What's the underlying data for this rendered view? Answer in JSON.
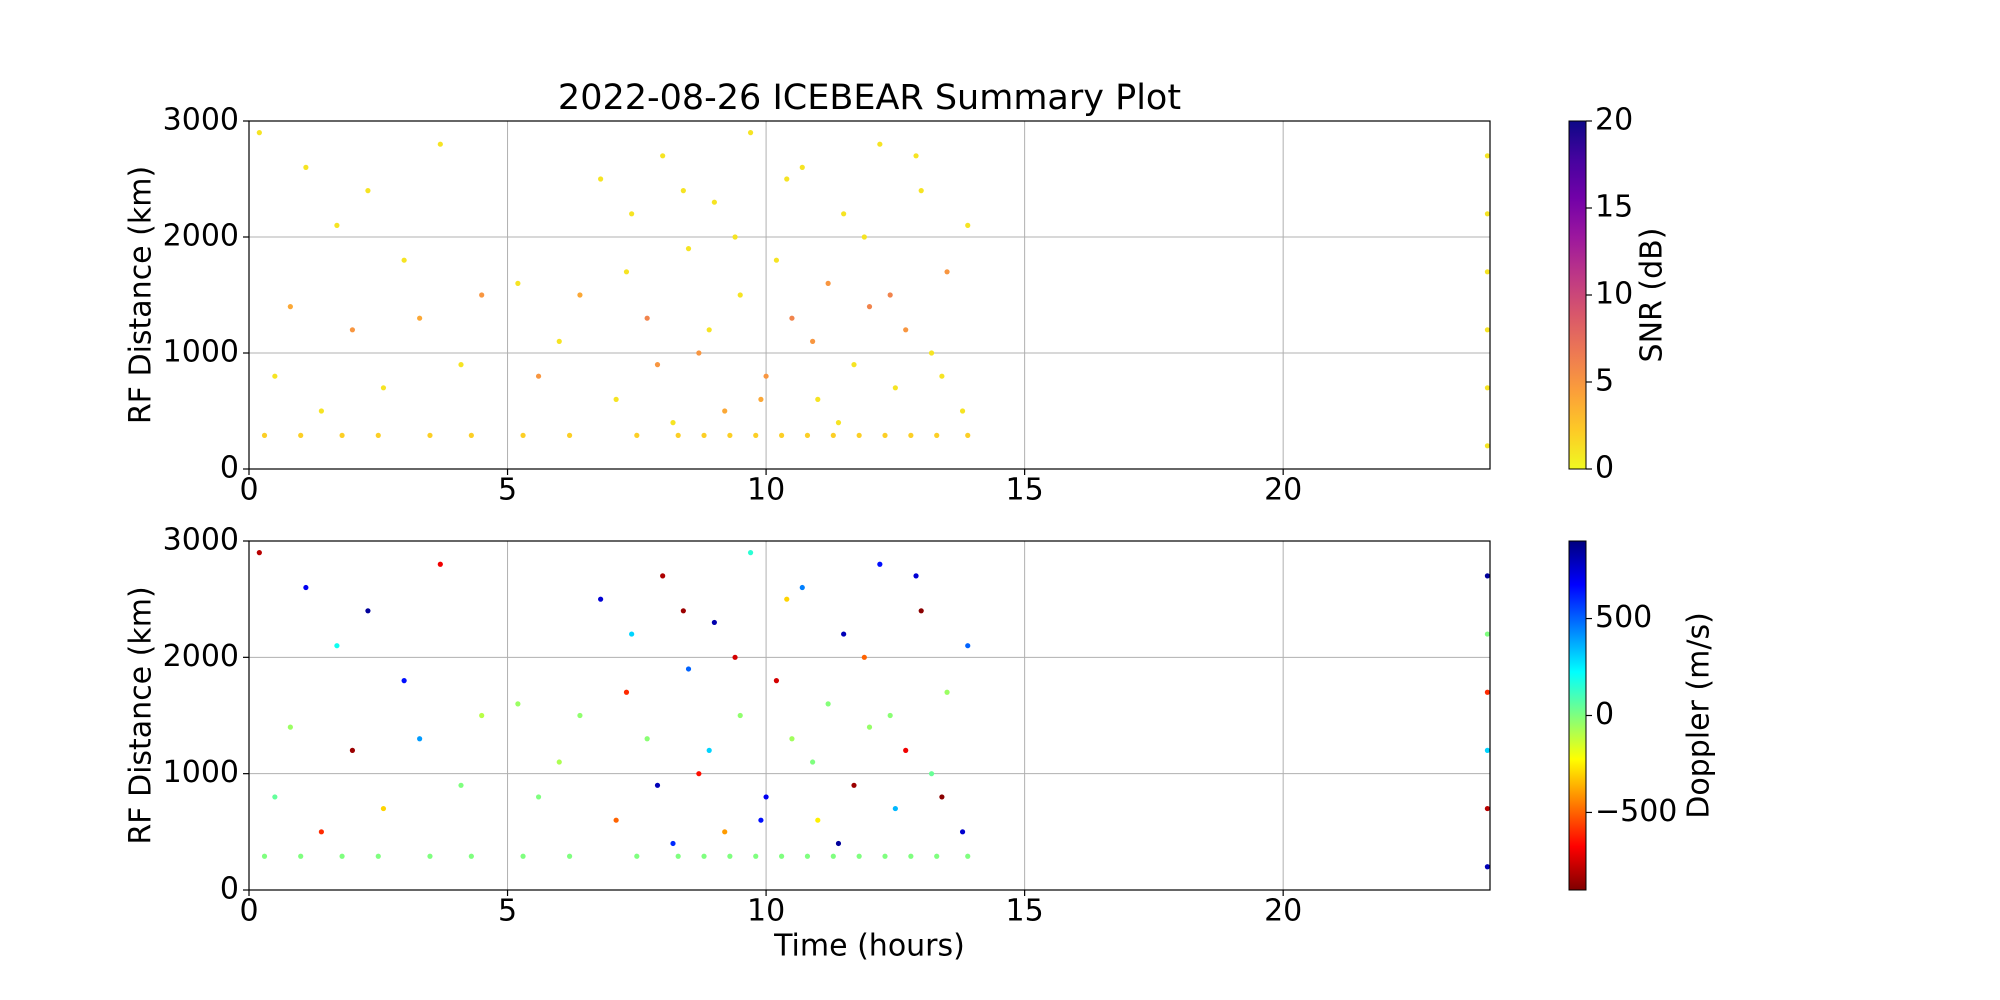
{
  "chart_data": [
    {
      "type": "scatter",
      "title": "2022-08-26 ICEBEAR Summary Plot",
      "ylabel": "RF Distance (km)",
      "colorbar_label": "SNR (dB)",
      "colormap": "plasma_r",
      "clim": [
        0,
        20
      ],
      "cticks": [
        0,
        5,
        10,
        15,
        20
      ],
      "xlim": [
        0,
        24
      ],
      "ylim": [
        0,
        3000
      ],
      "xticks": [
        0,
        5,
        10,
        15,
        20
      ],
      "yticks": [
        0,
        1000,
        2000,
        3000
      ],
      "grid": true,
      "x": [
        0.2,
        0.5,
        0.8,
        1.1,
        1.4,
        1.7,
        2,
        2.3,
        2.6,
        3,
        3.3,
        3.7,
        4.1,
        4.5,
        5.2,
        5.6,
        6,
        6.4,
        6.8,
        7.1,
        7.4,
        7.7,
        8,
        8.2,
        8.5,
        8.7,
        9,
        9.2,
        9.5,
        9.7,
        10,
        10.2,
        10.5,
        10.7,
        11,
        11.2,
        11.5,
        11.7,
        12,
        12.2,
        12.5,
        12.7,
        13,
        13.2,
        13.5,
        13.8,
        0.3,
        1,
        1.8,
        2.5,
        3.5,
        4.3,
        5.3,
        6.2,
        7.5,
        8.3,
        8.8,
        9.3,
        9.8,
        10.3,
        10.8,
        11.3,
        11.8,
        12.3,
        12.8,
        13.3,
        13.9,
        7.3,
        7.9,
        8.4,
        8.9,
        9.4,
        9.9,
        10.4,
        10.9,
        11.4,
        11.9,
        12.4,
        12.9,
        13.4,
        13.9,
        23.95,
        23.95,
        23.95,
        23.95,
        23.95,
        23.95
      ],
      "y": [
        2900,
        800,
        1400,
        2600,
        500,
        2100,
        1200,
        2400,
        700,
        1800,
        1300,
        2800,
        900,
        1500,
        1600,
        800,
        1100,
        1500,
        2500,
        600,
        2200,
        1300,
        2700,
        400,
        1900,
        1000,
        2300,
        500,
        1500,
        2900,
        800,
        1800,
        1300,
        2600,
        600,
        1600,
        2200,
        900,
        1400,
        2800,
        700,
        1200,
        2400,
        1000,
        1700,
        500,
        290,
        290,
        290,
        290,
        290,
        290,
        290,
        290,
        290,
        290,
        290,
        290,
        290,
        290,
        290,
        290,
        290,
        290,
        290,
        290,
        290,
        1700,
        900,
        2400,
        1200,
        2000,
        600,
        2500,
        1100,
        400,
        2000,
        1500,
        2700,
        800,
        2100,
        200,
        700,
        1200,
        1700,
        2200,
        2700
      ],
      "c": [
        1,
        1,
        4,
        1,
        1,
        1,
        5,
        1,
        1,
        1,
        4,
        1,
        1,
        5,
        1,
        5,
        1,
        4,
        1,
        1,
        1,
        6,
        1,
        1,
        1,
        5,
        1,
        4,
        1,
        1,
        5,
        1,
        6,
        1,
        1,
        5,
        1,
        1,
        6,
        1,
        1,
        5,
        1,
        1,
        5,
        1,
        2,
        2,
        2,
        2,
        2,
        2,
        2,
        2,
        2,
        2,
        2,
        2,
        2,
        2,
        2,
        2,
        2,
        2,
        2,
        2,
        2,
        1,
        5,
        1,
        1,
        1,
        4,
        1,
        5,
        1,
        1,
        6,
        1,
        1,
        1,
        1,
        1,
        1,
        1,
        1,
        1
      ]
    },
    {
      "type": "scatter",
      "xlabel": "Time (hours)",
      "ylabel": "RF Distance (km)",
      "colorbar_label": "Doppler (m/s)",
      "colormap": "jet_r",
      "clim": [
        -900,
        900
      ],
      "cticks": [
        {
          "value": -500,
          "label": "−500"
        },
        0,
        500
      ],
      "xlim": [
        0,
        24
      ],
      "ylim": [
        0,
        3000
      ],
      "xticks": [
        0,
        5,
        10,
        15,
        20
      ],
      "yticks": [
        0,
        1000,
        2000,
        3000
      ],
      "grid": true,
      "x": [
        0.2,
        0.5,
        0.8,
        1.1,
        1.4,
        1.7,
        2,
        2.3,
        2.6,
        3,
        3.3,
        3.7,
        4.1,
        4.5,
        5.2,
        5.6,
        6,
        6.4,
        6.8,
        7.1,
        7.4,
        7.7,
        8,
        8.2,
        8.5,
        8.7,
        9,
        9.2,
        9.5,
        9.7,
        10,
        10.2,
        10.5,
        10.7,
        11,
        11.2,
        11.5,
        11.7,
        12,
        12.2,
        12.5,
        12.7,
        13,
        13.2,
        13.5,
        13.8,
        0.3,
        1,
        1.8,
        2.5,
        3.5,
        4.3,
        5.3,
        6.2,
        7.5,
        8.3,
        8.8,
        9.3,
        9.8,
        10.3,
        10.8,
        11.3,
        11.8,
        12.3,
        12.8,
        13.3,
        13.9,
        7.3,
        7.9,
        8.4,
        8.9,
        9.4,
        9.9,
        10.4,
        10.9,
        11.4,
        11.9,
        12.4,
        12.9,
        13.4,
        13.9,
        23.95,
        23.95,
        23.95,
        23.95,
        23.95,
        23.95
      ],
      "y": [
        2900,
        800,
        1400,
        2600,
        500,
        2100,
        1200,
        2400,
        700,
        1800,
        1300,
        2800,
        900,
        1500,
        1600,
        800,
        1100,
        1500,
        2500,
        600,
        2200,
        1300,
        2700,
        400,
        1900,
        1000,
        2300,
        500,
        1500,
        2900,
        800,
        1800,
        1300,
        2600,
        600,
        1600,
        2200,
        900,
        1400,
        2800,
        700,
        1200,
        2400,
        1000,
        1700,
        500,
        290,
        290,
        290,
        290,
        290,
        290,
        290,
        290,
        290,
        290,
        290,
        290,
        290,
        290,
        290,
        290,
        290,
        290,
        290,
        290,
        290,
        1700,
        900,
        2400,
        1200,
        2000,
        600,
        2500,
        1100,
        400,
        2000,
        1500,
        2700,
        800,
        2100,
        200,
        700,
        1200,
        1700,
        2200,
        2700
      ],
      "c": [
        -800,
        50,
        -50,
        700,
        -600,
        200,
        -850,
        850,
        -300,
        650,
        400,
        -700,
        0,
        -100,
        -50,
        0,
        -80,
        -30,
        750,
        -500,
        300,
        -20,
        -820,
        600,
        500,
        -650,
        820,
        -400,
        -30,
        150,
        700,
        -750,
        -60,
        450,
        -250,
        -10,
        800,
        -850,
        -40,
        650,
        350,
        -700,
        -880,
        40,
        -50,
        760,
        0,
        0,
        0,
        0,
        0,
        0,
        0,
        0,
        0,
        0,
        0,
        0,
        0,
        0,
        0,
        0,
        0,
        0,
        0,
        0,
        0,
        -600,
        800,
        -850,
        300,
        -750,
        650,
        -300,
        0,
        850,
        -500,
        -20,
        750,
        -880,
        500,
        800,
        -800,
        300,
        -600,
        0,
        850
      ]
    }
  ]
}
